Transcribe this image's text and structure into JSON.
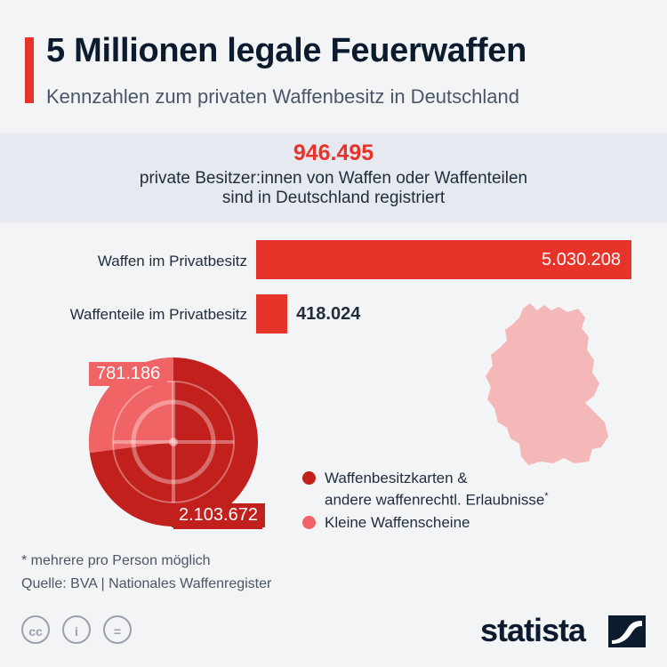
{
  "header": {
    "title": "5 Millionen legale Feuerwaffen",
    "subtitle": "Kennzahlen zum privaten Waffenbesitz in Deutschland"
  },
  "kpi": {
    "value": "946.495",
    "label_line1": "private Besitzer:innen von Waffen oder Waffenteilen",
    "label_line2": "sind in Deutschland registriert"
  },
  "colors": {
    "accent": "#e8332a",
    "dark_red": "#c1201c",
    "light_red": "#f06465",
    "map": "#f4b8b8",
    "navy": "#0d1b2e"
  },
  "chart_data": [
    {
      "type": "bar",
      "orientation": "horizontal",
      "categories": [
        "Waffen im Privatbesitz",
        "Waffenteile im Privatbesitz"
      ],
      "values": [
        5030208,
        418024
      ],
      "value_labels": [
        "5.030.208",
        "418.024"
      ],
      "xlim": [
        0,
        5030208
      ]
    },
    {
      "type": "pie",
      "slices": [
        {
          "name": "Waffenbesitzkarten & andere waffenrechtl. Erlaubnisse*",
          "value": 2103672,
          "label": "2.103.672",
          "color": "#c1201c"
        },
        {
          "name": "Kleine Waffenscheine",
          "value": 781186,
          "label": "781.186",
          "color": "#f06465"
        }
      ],
      "legend": [
        {
          "line1": "Waffenbesitzkarten &",
          "line2": "andere waffenrechtl. Erlaubnisse",
          "superscript": "*"
        },
        {
          "line1": "Kleine Waffenscheine"
        }
      ]
    }
  ],
  "footer": {
    "footnote": "* mehrere pro Person möglich",
    "source": "Quelle: BVA | Nationales Waffenregister",
    "logo": "statista",
    "cc_labels": [
      "cc",
      "i",
      "="
    ]
  }
}
